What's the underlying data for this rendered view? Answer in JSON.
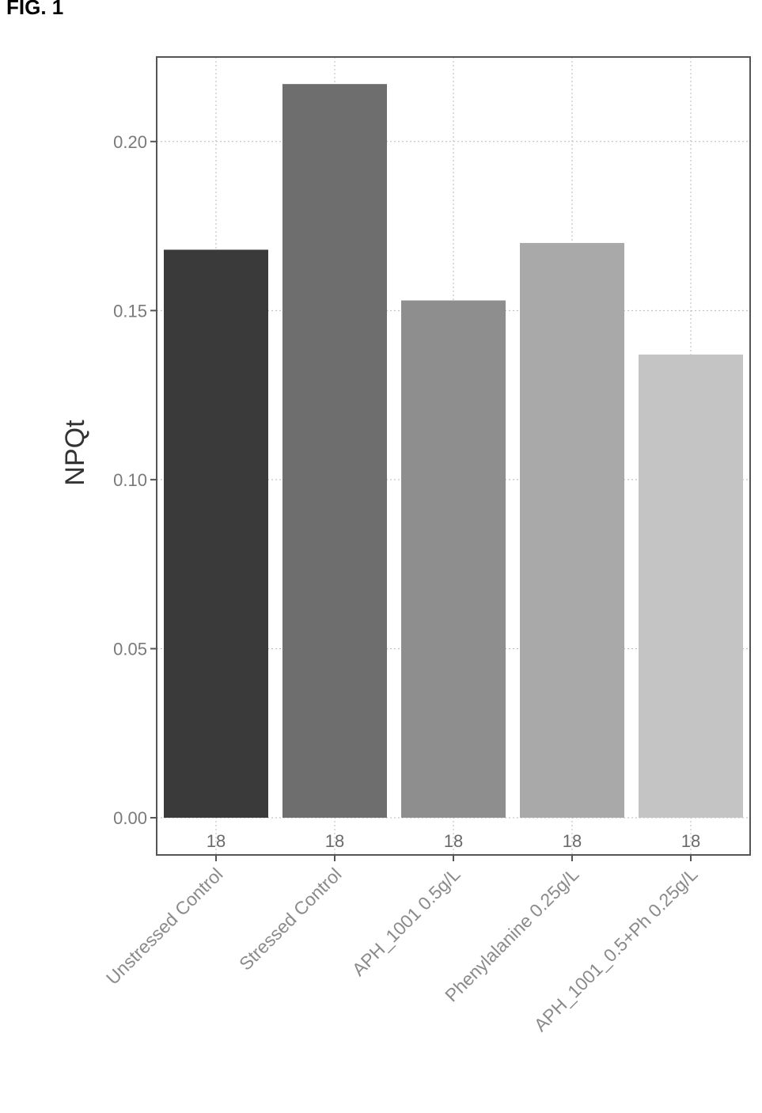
{
  "figure_label": "FIG. 1",
  "chart_data": {
    "type": "bar",
    "title": "",
    "xlabel": "",
    "ylabel": "NPQt",
    "categories": [
      "Unstressed Control",
      "Stressed Control",
      "APH_1001 0.5g/L",
      "Phenylalanine 0.25g/L",
      "APH_1001_0.5+Ph 0.25g/L"
    ],
    "values": [
      0.168,
      0.217,
      0.153,
      0.17,
      0.137
    ],
    "sample_sizes": [
      "18",
      "18",
      "18",
      "18",
      "18"
    ],
    "bar_colors": [
      "#3a3a3a",
      "#6e6e6e",
      "#8e8e8e",
      "#a9a9a9",
      "#c4c4c4"
    ],
    "yticks": [
      "0.00",
      "0.05",
      "0.10",
      "0.15",
      "0.20"
    ],
    "ylim": [
      -0.011,
      0.225
    ],
    "grid": true,
    "legend": "none"
  }
}
